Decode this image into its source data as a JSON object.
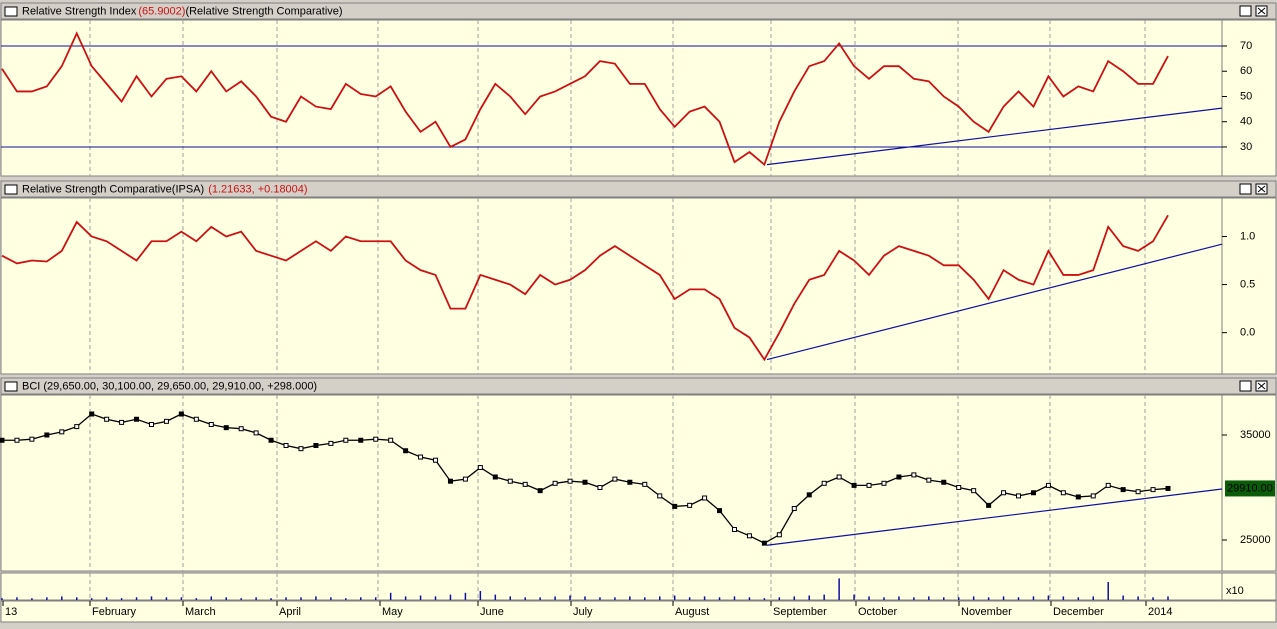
{
  "chart_data": [
    {
      "type": "line",
      "title": "Relative Strength Index",
      "title_value": "(65.9002)",
      "subtitle": "(Relative Strength Comparative)",
      "color": "#cc1111",
      "ylim": [
        18.5,
        80.3
      ],
      "yticks": [
        30,
        40,
        50,
        60,
        70
      ],
      "reference_lines": [
        30,
        70
      ],
      "trendline": [
        23,
        45.4
      ],
      "trendline_color": "#1010a0",
      "values": [
        61,
        52,
        52,
        54,
        62,
        75,
        62,
        55,
        48,
        58,
        50,
        57,
        58,
        52,
        60,
        52,
        56,
        50,
        42,
        40,
        50,
        46,
        45,
        55,
        51,
        50,
        54,
        44,
        36,
        40,
        30,
        33,
        45,
        55,
        50,
        43,
        50,
        52,
        55,
        58,
        64,
        63,
        55,
        55,
        45,
        38,
        44,
        46,
        40,
        24,
        28,
        23,
        40,
        52,
        62,
        64,
        71,
        62,
        57,
        62,
        62,
        57,
        56,
        50,
        46,
        40,
        36,
        46,
        52,
        46,
        58,
        50,
        54,
        52,
        64,
        60,
        55,
        55,
        66
      ]
    },
    {
      "type": "line",
      "title": "Relative Strength Comparative(IPSA)",
      "title_value": "(1.21633, +0.18004)",
      "color": "#cc1111",
      "ylim": [
        -0.43,
        1.4
      ],
      "yticks": [
        {
          "value": 0,
          "label": "0.0"
        },
        0.5,
        {
          "value": 1,
          "label": "1.0"
        }
      ],
      "trendline": [
        -0.28,
        0.92
      ],
      "trendline_color": "#1010a0",
      "values": [
        0.8,
        0.72,
        0.75,
        0.74,
        0.85,
        1.15,
        1.0,
        0.95,
        0.85,
        0.75,
        0.95,
        0.95,
        1.05,
        0.95,
        1.1,
        1.0,
        1.05,
        0.85,
        0.8,
        0.75,
        0.85,
        0.95,
        0.85,
        1.0,
        0.95,
        0.95,
        0.95,
        0.75,
        0.65,
        0.6,
        0.25,
        0.25,
        0.6,
        0.55,
        0.5,
        0.4,
        0.6,
        0.5,
        0.55,
        0.65,
        0.8,
        0.9,
        0.8,
        0.7,
        0.6,
        0.35,
        0.45,
        0.45,
        0.35,
        0.05,
        -0.05,
        -0.28,
        0.0,
        0.3,
        0.55,
        0.6,
        0.85,
        0.75,
        0.6,
        0.8,
        0.9,
        0.85,
        0.8,
        0.7,
        0.7,
        0.55,
        0.35,
        0.65,
        0.55,
        0.5,
        0.85,
        0.6,
        0.6,
        0.65,
        1.1,
        0.9,
        0.85,
        0.95,
        1.22
      ]
    },
    {
      "type": "price",
      "title": "BCI (29,650.00, 30,100.00, 29,650.00, 29,910.00, +298.000)",
      "color": "#000000",
      "ylim": [
        22048,
        38810
      ],
      "yticks": [
        25000,
        35000
      ],
      "trendline": [
        24500,
        29860
      ],
      "trendline_color": "#1010a0",
      "last_value": {
        "value": 29910,
        "label": "29910.00"
      },
      "values": [
        34500,
        34500,
        34600,
        35000,
        35300,
        35800,
        37000,
        36500,
        36200,
        36500,
        36000,
        36300,
        37000,
        36500,
        36000,
        35700,
        35600,
        35200,
        34500,
        34000,
        33700,
        34000,
        34200,
        34500,
        34500,
        34600,
        34500,
        33500,
        32900,
        32600,
        30600,
        30800,
        31900,
        31000,
        30600,
        30300,
        29700,
        30400,
        30600,
        30500,
        30000,
        30800,
        30500,
        30300,
        29200,
        28200,
        28300,
        29000,
        27800,
        26000,
        25400,
        24700,
        25500,
        28000,
        29300,
        30400,
        31000,
        30200,
        30200,
        30400,
        31000,
        31200,
        30700,
        30500,
        30000,
        29700,
        28300,
        29500,
        29200,
        29500,
        30200,
        29500,
        29100,
        29200,
        30200,
        29800,
        29600,
        29800,
        29910
      ]
    },
    {
      "type": "volume",
      "axis_label": "x10",
      "color": "#1010a0",
      "ylim": [
        0,
        30
      ],
      "values": [
        2,
        3,
        2,
        3,
        4,
        3,
        2,
        3,
        2,
        3,
        4,
        3,
        3,
        2,
        4,
        3,
        2,
        3,
        2,
        3,
        3,
        4,
        3,
        2,
        3,
        3,
        8,
        4,
        5,
        4,
        6,
        8,
        10,
        6,
        4,
        3,
        3,
        4,
        5,
        4,
        3,
        3,
        4,
        3,
        4,
        5,
        3,
        4,
        3,
        4,
        3,
        2,
        3,
        4,
        5,
        6,
        24,
        6,
        4,
        3,
        4,
        3,
        4,
        3,
        3,
        4,
        3,
        4,
        3,
        4,
        5,
        4,
        3,
        4,
        20,
        5,
        4,
        3,
        4
      ]
    }
  ],
  "x_axis": {
    "labels": [
      "13",
      "February",
      "March",
      "April",
      "May",
      "June",
      "July",
      "August",
      "September",
      "October",
      "November",
      "December",
      "2014"
    ]
  }
}
